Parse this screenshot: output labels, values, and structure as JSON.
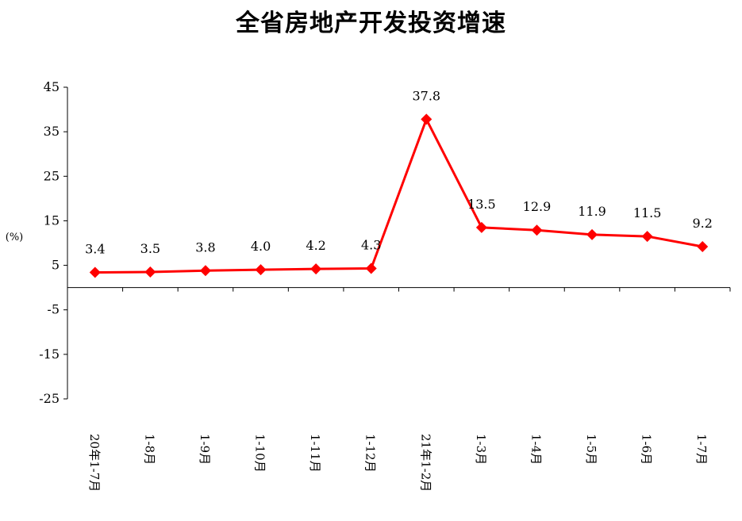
{
  "chart_data": {
    "type": "line",
    "title": "全省房地产开发投资增速",
    "ylabel": "(%)",
    "xlabel": "",
    "categories": [
      "20年1-7月",
      "1-8月",
      "1-9月",
      "1-10月",
      "1-11月",
      "1-12月",
      "21年1-2月",
      "1-3月",
      "1-4月",
      "1-5月",
      "1-6月",
      "1-7月"
    ],
    "series": [
      {
        "values": [
          3.4,
          3.5,
          3.8,
          4.0,
          4.2,
          4.3,
          37.8,
          13.5,
          12.9,
          11.9,
          11.5,
          9.2
        ],
        "labels": [
          "3.4",
          "3.5",
          "3.8",
          "4.0",
          "4.2",
          "4.3",
          "37.8",
          "13.5",
          "12.9",
          "11.9",
          "11.5",
          "9.2"
        ]
      }
    ],
    "yticks": [
      "45",
      "35",
      "25",
      "15",
      "5",
      "-5",
      "-15",
      "-25"
    ],
    "ylim": [
      -25,
      45
    ],
    "grid": false,
    "legend": "none",
    "line_color": "#ff0000",
    "marker_color": "#ff0000",
    "marker": "diamond"
  }
}
